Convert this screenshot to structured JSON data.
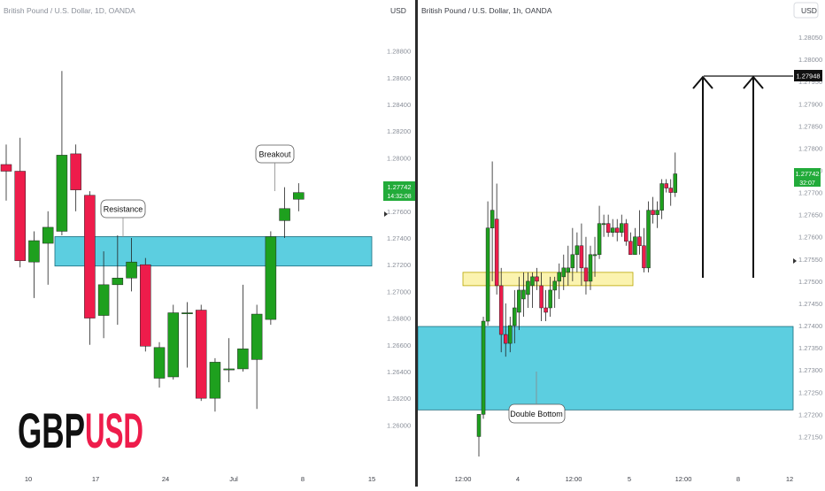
{
  "colors": {
    "bull": "#1ea01e",
    "bear": "#ee1c4b",
    "zone_blue": "#3fc6db",
    "zone_yellow": "#fbf2a6",
    "axis_text": "#8a8f99",
    "divider": "#2b2b2b",
    "price_tag_bg": "#22ab3a",
    "target_tag_bg": "#111111"
  },
  "chart_data": [
    {
      "type": "candlestick",
      "title": "British Pound / U.S. Dollar, 1D, OANDA",
      "currency_label": "USD",
      "ylim": [
        1.2585,
        1.2895
      ],
      "y_ticks": [
        "1.28800",
        "1.28600",
        "1.28400",
        "1.28200",
        "1.28000",
        "1.27800",
        "1.27600",
        "1.27400",
        "1.27200",
        "1.27000",
        "1.26800",
        "1.26600",
        "1.26400",
        "1.26200",
        "1.26000"
      ],
      "x_ticks": [
        "10",
        "17",
        "24",
        "Jul",
        "8",
        "15"
      ],
      "last_price_tag": "1.27742",
      "countdown": "14:32:08",
      "candles": [
        {
          "o": 1.2795,
          "h": 1.281,
          "l": 1.2768,
          "c": 1.279
        },
        {
          "o": 1.279,
          "h": 1.2815,
          "l": 1.2718,
          "c": 1.2723
        },
        {
          "o": 1.2722,
          "h": 1.2745,
          "l": 1.2695,
          "c": 1.2738
        },
        {
          "o": 1.2736,
          "h": 1.276,
          "l": 1.2705,
          "c": 1.2748
        },
        {
          "o": 1.2745,
          "h": 1.2865,
          "l": 1.2742,
          "c": 1.2802
        },
        {
          "o": 1.2803,
          "h": 1.281,
          "l": 1.276,
          "c": 1.2776
        },
        {
          "o": 1.2772,
          "h": 1.2775,
          "l": 1.266,
          "c": 1.268
        },
        {
          "o": 1.2682,
          "h": 1.273,
          "l": 1.2665,
          "c": 1.2705
        },
        {
          "o": 1.2705,
          "h": 1.2742,
          "l": 1.2675,
          "c": 1.271
        },
        {
          "o": 1.271,
          "h": 1.274,
          "l": 1.27,
          "c": 1.2722
        },
        {
          "o": 1.272,
          "h": 1.2725,
          "l": 1.2655,
          "c": 1.2659
        },
        {
          "o": 1.2635,
          "h": 1.2662,
          "l": 1.2628,
          "c": 1.2658
        },
        {
          "o": 1.2636,
          "h": 1.269,
          "l": 1.2634,
          "c": 1.2684
        },
        {
          "o": 1.2684,
          "h": 1.2692,
          "l": 1.2643,
          "c": 1.2684
        },
        {
          "o": 1.2686,
          "h": 1.269,
          "l": 1.2618,
          "c": 1.262
        },
        {
          "o": 1.262,
          "h": 1.265,
          "l": 1.261,
          "c": 1.2647
        },
        {
          "o": 1.2642,
          "h": 1.2665,
          "l": 1.2632,
          "c": 1.2642
        },
        {
          "o": 1.2642,
          "h": 1.2705,
          "l": 1.264,
          "c": 1.2657
        },
        {
          "o": 1.2649,
          "h": 1.269,
          "l": 1.2612,
          "c": 1.2683
        },
        {
          "o": 1.2679,
          "h": 1.2745,
          "l": 1.2675,
          "c": 1.2741
        },
        {
          "o": 1.2753,
          "h": 1.2778,
          "l": 1.274,
          "c": 1.2762
        },
        {
          "o": 1.2769,
          "h": 1.2781,
          "l": 1.276,
          "c": 1.2774
        }
      ],
      "zones": [
        {
          "kind": "resistance",
          "y_top": 1.2741,
          "y_bottom": 1.2719
        }
      ],
      "annotations": [
        {
          "text": "Resistance",
          "target_price": 1.274
        },
        {
          "text": "Breakout",
          "target_price": 1.2783
        }
      ]
    },
    {
      "type": "candlestick",
      "title": "British Pound / U.S. Dollar, 1h, OANDA",
      "currency_label": "USD",
      "ylim": [
        1.27105,
        1.2807
      ],
      "y_ticks": [
        "1.28050",
        "1.28000",
        "1.27950",
        "1.27900",
        "1.27850",
        "1.27800",
        "1.27750",
        "1.27700",
        "1.27650",
        "1.27600",
        "1.27550",
        "1.27500",
        "1.27450",
        "1.27400",
        "1.27350",
        "1.27300",
        "1.27250",
        "1.27200",
        "1.27150"
      ],
      "x_ticks": [
        "12:00",
        "4",
        "12:00",
        "5",
        "12:00",
        "8",
        "12"
      ],
      "last_price_tag": "1.27742",
      "countdown": "32:07",
      "target_price_tag": "1.27948",
      "target_price": 1.27948,
      "candles": [
        {
          "o": 1.2715,
          "h": 1.272,
          "l": 1.27105,
          "c": 1.272
        },
        {
          "o": 1.272,
          "h": 1.2742,
          "l": 1.2719,
          "c": 1.2741
        },
        {
          "o": 1.2741,
          "h": 1.2768,
          "l": 1.274,
          "c": 1.2762
        },
        {
          "o": 1.2762,
          "h": 1.2777,
          "l": 1.275,
          "c": 1.2766
        },
        {
          "o": 1.2764,
          "h": 1.2772,
          "l": 1.2747,
          "c": 1.2749
        },
        {
          "o": 1.2749,
          "h": 1.2753,
          "l": 1.2734,
          "c": 1.2738
        },
        {
          "o": 1.2738,
          "h": 1.2745,
          "l": 1.2733,
          "c": 1.2736
        },
        {
          "o": 1.2736,
          "h": 1.2742,
          "l": 1.2734,
          "c": 1.274
        },
        {
          "o": 1.274,
          "h": 1.2748,
          "l": 1.2736,
          "c": 1.2744
        },
        {
          "o": 1.2743,
          "h": 1.2751,
          "l": 1.2739,
          "c": 1.2748
        },
        {
          "o": 1.2746,
          "h": 1.2752,
          "l": 1.2742,
          "c": 1.2748
        },
        {
          "o": 1.2747,
          "h": 1.2752,
          "l": 1.2744,
          "c": 1.275
        },
        {
          "o": 1.2749,
          "h": 1.2752,
          "l": 1.2744,
          "c": 1.2751
        },
        {
          "o": 1.2751,
          "h": 1.2753,
          "l": 1.2748,
          "c": 1.275
        },
        {
          "o": 1.2749,
          "h": 1.2752,
          "l": 1.2741,
          "c": 1.2744
        },
        {
          "o": 1.2744,
          "h": 1.2748,
          "l": 1.2741,
          "c": 1.2743
        },
        {
          "o": 1.2744,
          "h": 1.2751,
          "l": 1.2742,
          "c": 1.2748
        },
        {
          "o": 1.2748,
          "h": 1.2751,
          "l": 1.2744,
          "c": 1.275
        },
        {
          "o": 1.275,
          "h": 1.2754,
          "l": 1.2746,
          "c": 1.2752
        },
        {
          "o": 1.2751,
          "h": 1.2756,
          "l": 1.2748,
          "c": 1.2753
        },
        {
          "o": 1.2752,
          "h": 1.2758,
          "l": 1.2749,
          "c": 1.2753
        },
        {
          "o": 1.2753,
          "h": 1.2762,
          "l": 1.275,
          "c": 1.2756
        },
        {
          "o": 1.2756,
          "h": 1.2761,
          "l": 1.2752,
          "c": 1.2758
        },
        {
          "o": 1.2758,
          "h": 1.2763,
          "l": 1.2749,
          "c": 1.2753
        },
        {
          "o": 1.2753,
          "h": 1.276,
          "l": 1.2747,
          "c": 1.275
        },
        {
          "o": 1.275,
          "h": 1.2758,
          "l": 1.2748,
          "c": 1.2756
        },
        {
          "o": 1.2756,
          "h": 1.276,
          "l": 1.2751,
          "c": 1.2756
        },
        {
          "o": 1.2756,
          "h": 1.2767,
          "l": 1.2755,
          "c": 1.2763
        },
        {
          "o": 1.2763,
          "h": 1.2765,
          "l": 1.276,
          "c": 1.2763
        },
        {
          "o": 1.2763,
          "h": 1.2765,
          "l": 1.276,
          "c": 1.2761
        },
        {
          "o": 1.2761,
          "h": 1.2764,
          "l": 1.276,
          "c": 1.2762
        },
        {
          "o": 1.2762,
          "h": 1.2764,
          "l": 1.2759,
          "c": 1.2761
        },
        {
          "o": 1.2761,
          "h": 1.2765,
          "l": 1.276,
          "c": 1.2763
        },
        {
          "o": 1.2763,
          "h": 1.2764,
          "l": 1.2758,
          "c": 1.2759
        },
        {
          "o": 1.2759,
          "h": 1.2761,
          "l": 1.2756,
          "c": 1.2756
        },
        {
          "o": 1.2756,
          "h": 1.2762,
          "l": 1.2756,
          "c": 1.276
        },
        {
          "o": 1.276,
          "h": 1.2766,
          "l": 1.2756,
          "c": 1.2758
        },
        {
          "o": 1.2758,
          "h": 1.2762,
          "l": 1.2752,
          "c": 1.2753
        },
        {
          "o": 1.2753,
          "h": 1.2768,
          "l": 1.2752,
          "c": 1.2766
        },
        {
          "o": 1.2766,
          "h": 1.2769,
          "l": 1.2763,
          "c": 1.2765
        },
        {
          "o": 1.2765,
          "h": 1.2768,
          "l": 1.2762,
          "c": 1.2766
        },
        {
          "o": 1.2766,
          "h": 1.2773,
          "l": 1.2764,
          "c": 1.2772
        },
        {
          "o": 1.2772,
          "h": 1.2773,
          "l": 1.277,
          "c": 1.2771
        },
        {
          "o": 1.2771,
          "h": 1.2773,
          "l": 1.2767,
          "c": 1.277
        },
        {
          "o": 1.277,
          "h": 1.2779,
          "l": 1.2769,
          "c": 1.27742
        }
      ],
      "zones": [
        {
          "kind": "supply",
          "y_top": 1.2752,
          "y_bottom": 1.2749
        },
        {
          "kind": "demand",
          "y_top": 1.27398,
          "y_bottom": 1.2721
        }
      ],
      "annotations": [
        {
          "text": "Double Bottom",
          "target_price": 1.2731
        }
      ]
    }
  ],
  "brand": {
    "part1": "GBP",
    "part2": "USD"
  }
}
